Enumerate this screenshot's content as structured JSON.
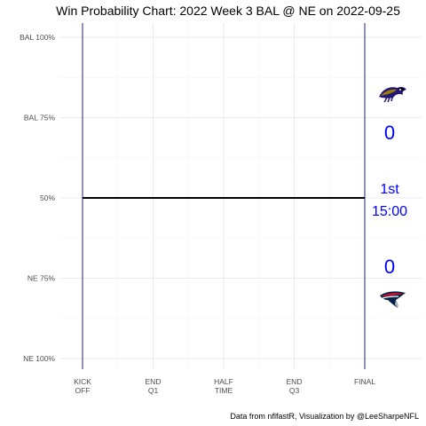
{
  "chart_data": {
    "type": "line",
    "title": "Win Probability Chart: 2022 Week 3 BAL @ NE on 2022-09-25",
    "y_ticks": [
      {
        "value": 1.0,
        "label": "BAL 100%"
      },
      {
        "value": 0.75,
        "label": "BAL 75%"
      },
      {
        "value": 0.5,
        "label": "50%"
      },
      {
        "value": 0.25,
        "label": "NE 75%"
      },
      {
        "value": 0.0,
        "label": "NE 100%"
      }
    ],
    "x_ticks": [
      {
        "value": 3600,
        "lines": [
          "KICK",
          "OFF"
        ]
      },
      {
        "value": 2700,
        "lines": [
          "END",
          "Q1"
        ]
      },
      {
        "value": 1800,
        "lines": [
          "HALF",
          "TIME"
        ]
      },
      {
        "value": 900,
        "lines": [
          "END",
          "Q3"
        ]
      },
      {
        "value": 0,
        "lines": [
          "FINAL"
        ]
      }
    ],
    "xlim": [
      3600,
      0
    ],
    "ylim": [
      0,
      1
    ],
    "series": [
      {
        "x": [
          3600,
          0
        ],
        "y": [
          0.5,
          0.5
        ]
      }
    ],
    "vlines": [
      3600,
      0
    ],
    "grid": true,
    "colors": {
      "line": "#000000",
      "vline": "#1f1f7a",
      "text": "#0000ff"
    }
  },
  "teams": {
    "away": {
      "abbr": "BAL",
      "score": "0",
      "logo_icon": "ravens-logo-icon"
    },
    "home": {
      "abbr": "NE",
      "score": "0",
      "logo_icon": "patriots-logo-icon"
    }
  },
  "game_state": {
    "quarter": "1st",
    "clock": "15:00"
  },
  "caption": "Data from nflfastR, Visualization by @LeeSharpeNFL"
}
